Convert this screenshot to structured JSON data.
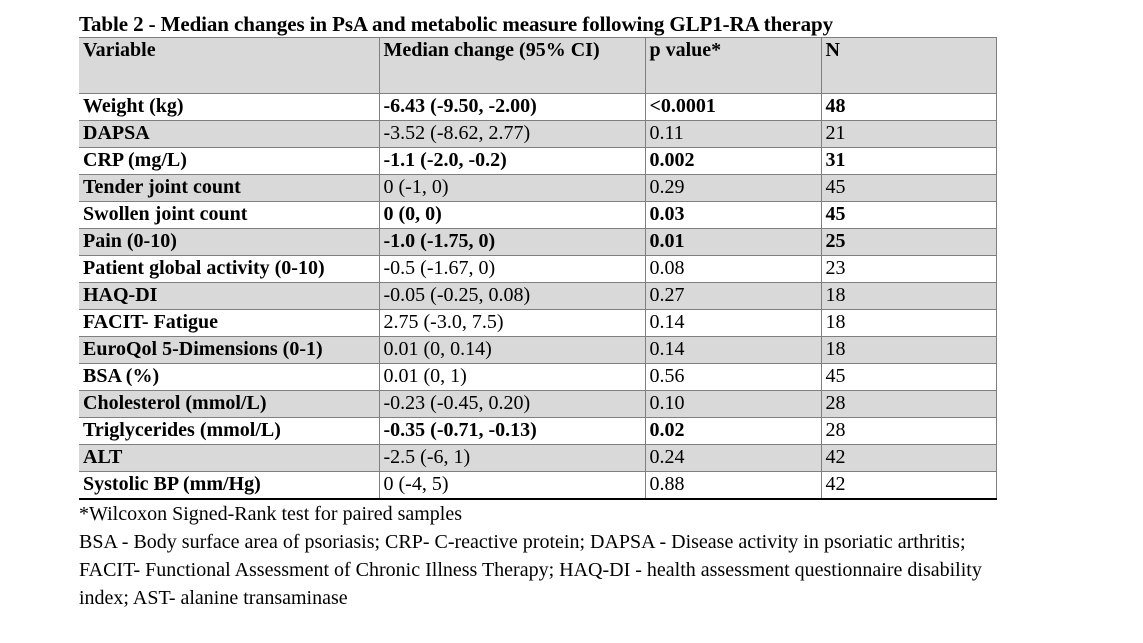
{
  "caption": "Table 2 - Median changes in PsA and metabolic measure following GLP1-RA therapy",
  "table": {
    "headers": [
      "Variable",
      "Median change (95% CI)",
      "p value*",
      "N"
    ],
    "rows": [
      {
        "variable": "Weight (kg)",
        "median": "-6.43 (-9.50, -2.00)",
        "p": "<0.0001",
        "n": "48",
        "significant": true
      },
      {
        "variable": "DAPSA",
        "median": "-3.52 (-8.62, 2.77)",
        "p": "0.11",
        "n": "21",
        "significant": false
      },
      {
        "variable": "CRP (mg/L)",
        "median": "-1.1 (-2.0, -0.2)",
        "p": "0.002",
        "n": "31",
        "significant": true
      },
      {
        "variable": "Tender joint count",
        "median": "0 (-1, 0)",
        "p": "0.29",
        "n": "45",
        "significant": false
      },
      {
        "variable": "Swollen joint count",
        "median": "0 (0, 0)",
        "p": "0.03",
        "n": "45",
        "significant": true
      },
      {
        "variable": "Pain (0-10)",
        "median": "-1.0 (-1.75, 0)",
        "p": "0.01",
        "n": "25",
        "significant": true
      },
      {
        "variable": "Patient global activity (0-10)",
        "median": "-0.5 (-1.67, 0)",
        "p": "0.08",
        "n": "23",
        "significant": false
      },
      {
        "variable": "HAQ-DI",
        "median": "-0.05 (-0.25, 0.08)",
        "p": "0.27",
        "n": "18",
        "significant": false
      },
      {
        "variable": "FACIT- Fatigue",
        "median": "2.75 (-3.0, 7.5)",
        "p": "0.14",
        "n": "18",
        "significant": false
      },
      {
        "variable": "EuroQol 5-Dimensions (0-1)",
        "median": "0.01 (0, 0.14)",
        "p": "0.14",
        "n": "18",
        "significant": false
      },
      {
        "variable": "BSA (%)",
        "median": "0.01 (0, 1)",
        "p": "0.56",
        "n": "45",
        "significant": false
      },
      {
        "variable": "Cholesterol (mmol/L)",
        "median": "-0.23 (-0.45, 0.20)",
        "p": "0.10",
        "n": "28",
        "significant": false
      },
      {
        "variable": "Triglycerides (mmol/L)",
        "median": "-0.35 (-0.71, -0.13)",
        "p": "0.02",
        "n": "28",
        "significant": "partial"
      },
      {
        "variable": "ALT",
        "median": "-2.5 (-6, 1)",
        "p": "0.24",
        "n": "42",
        "significant": false
      },
      {
        "variable": "Systolic BP (mm/Hg)",
        "median": "0 (-4, 5)",
        "p": "0.88",
        "n": "42",
        "significant": false
      }
    ]
  },
  "notes": {
    "footnote": "*Wilcoxon Signed-Rank test for paired samples",
    "abbreviations": "BSA - Body surface area of psoriasis; CRP- C-reactive protein; DAPSA - Disease activity in psoriatic arthritis; FACIT- Functional Assessment of Chronic Illness Therapy; HAQ-DI - health assessment questionnaire disability index; AST- alanine transaminase"
  }
}
